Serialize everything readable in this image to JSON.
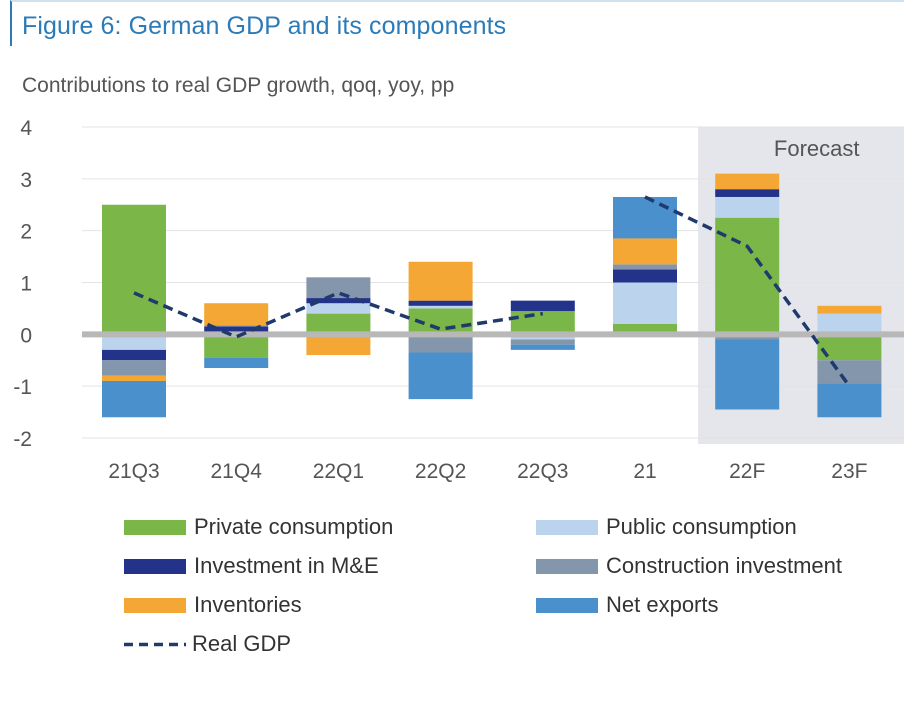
{
  "figure": {
    "title": "Figure 6: German GDP and its components",
    "subtitle": "Contributions to real GDP growth, qoq, yoy, pp"
  },
  "chart_data": {
    "type": "bar",
    "stacked": true,
    "categories": [
      "21Q3",
      "21Q4",
      "22Q1",
      "22Q2",
      "22Q3",
      "21",
      "22F",
      "23F"
    ],
    "ylim": [
      -2,
      4
    ],
    "yticks": [
      4,
      3,
      2,
      1,
      0,
      -1,
      -2
    ],
    "grid": true,
    "forecast_region": {
      "label": "Forecast",
      "categories": [
        "22F",
        "23F"
      ]
    },
    "series": [
      {
        "name": "Private consumption",
        "color": "#7ab648",
        "values": [
          2.5,
          -0.45,
          0.4,
          0.5,
          0.45,
          0.2,
          2.25,
          -0.5
        ]
      },
      {
        "name": "Public consumption",
        "color": "#bcd3ee",
        "values": [
          -0.3,
          0.05,
          0.2,
          0.05,
          -0.1,
          0.8,
          0.4,
          0.4
        ]
      },
      {
        "name": "Investment in M&E",
        "color": "#24338a",
        "values": [
          -0.2,
          0.1,
          0.1,
          0.1,
          0.2,
          0.25,
          0.15,
          0.0
        ]
      },
      {
        "name": "Construction investment",
        "color": "#8496ab",
        "values": [
          -0.3,
          0.02,
          0.4,
          -0.35,
          -0.1,
          0.1,
          -0.1,
          -0.45
        ]
      },
      {
        "name": "Inventories",
        "color": "#f4a734",
        "values": [
          -0.1,
          0.43,
          -0.4,
          0.75,
          0.0,
          0.5,
          0.3,
          0.15
        ]
      },
      {
        "name": "Net exports",
        "color": "#4a90cc",
        "values": [
          -0.7,
          -0.2,
          0.0,
          -0.9,
          -0.1,
          0.8,
          -1.35,
          -0.65
        ]
      }
    ],
    "line": {
      "name": "Real GDP",
      "color": "#1f3a6b",
      "values": [
        0.8,
        -0.05,
        0.8,
        0.1,
        0.4,
        2.65,
        1.7,
        -1.0
      ]
    },
    "legend": [
      "Private consumption",
      "Public consumption",
      "Investment in M&E",
      "Construction investment",
      "Inventories",
      "Net exports",
      "Real GDP"
    ],
    "legend_position": "bottom"
  }
}
